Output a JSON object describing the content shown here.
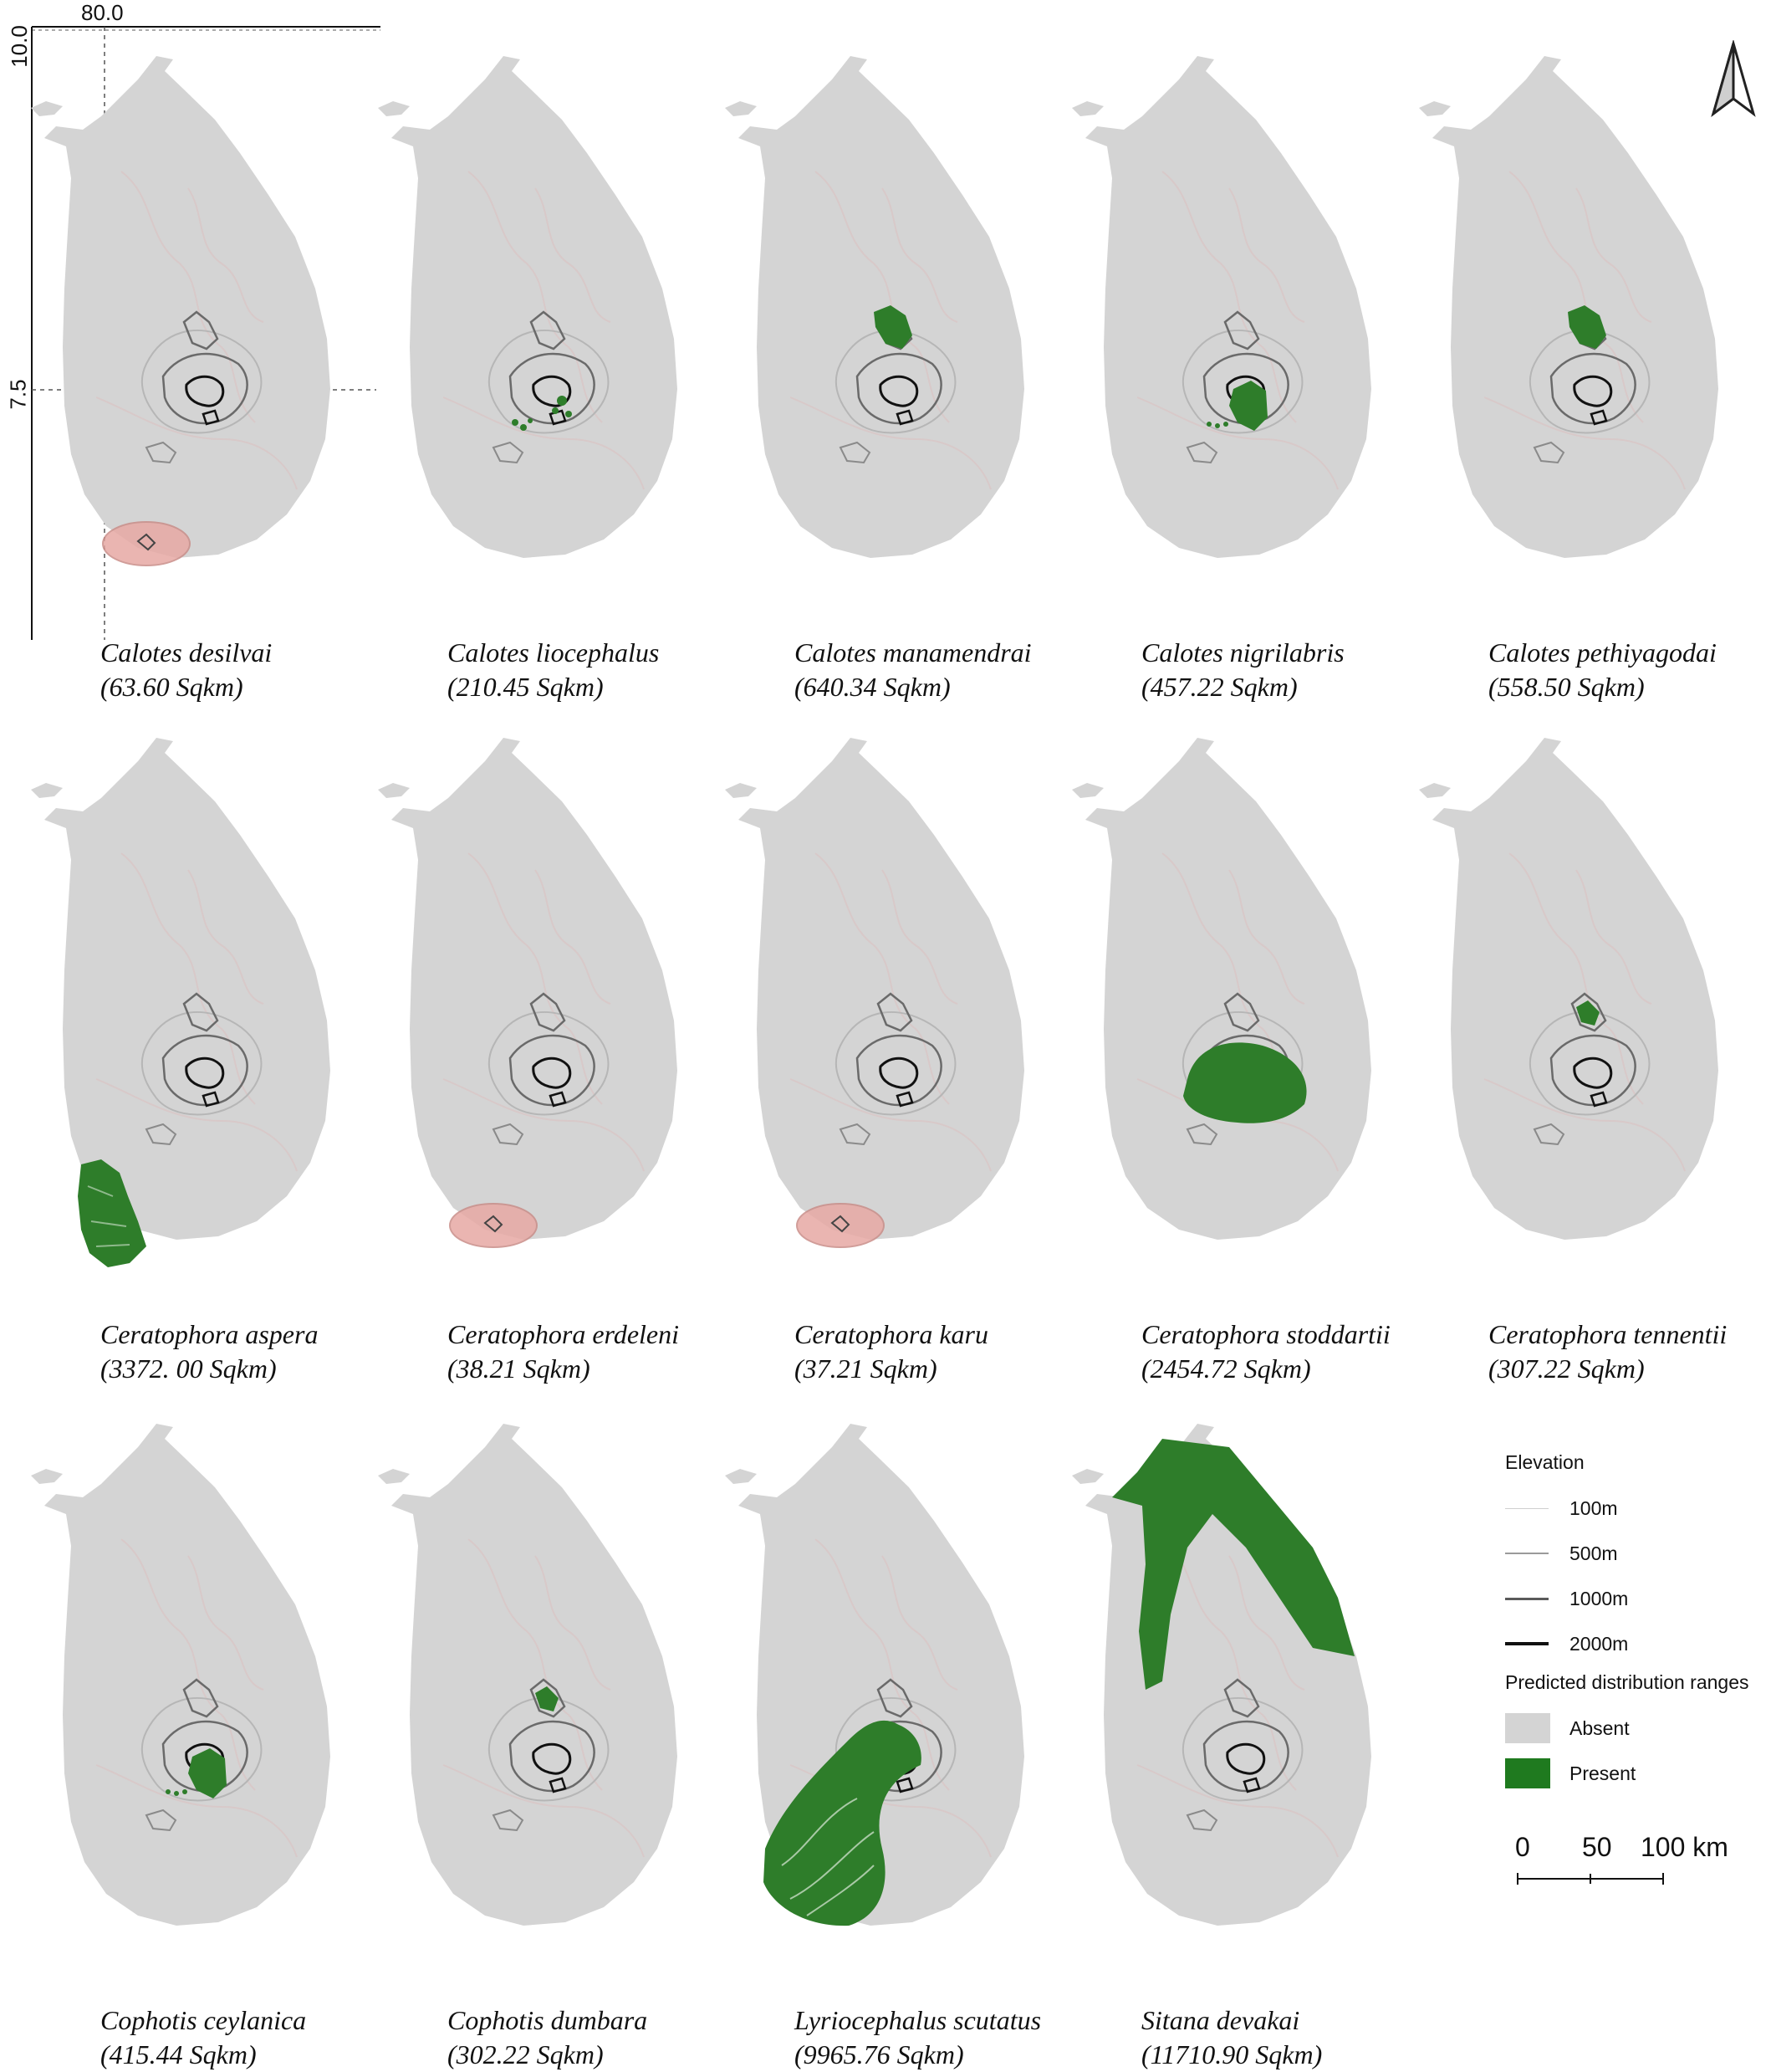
{
  "axes": {
    "lon_label": "80.0",
    "lat_labels": [
      "10.0",
      "7.5"
    ]
  },
  "panels": [
    {
      "species": "Calotes  desilvai",
      "area": "(63.60 Sqkm)",
      "range": "blob-sw-small"
    },
    {
      "species": "Calotes  liocephalus",
      "area": "(210.45 Sqkm)",
      "range": "dots-central"
    },
    {
      "species": "Calotes  manamendrai",
      "area": "(640.34 Sqkm)",
      "range": "knuckles"
    },
    {
      "species": "Calotes  nigrilabris",
      "area": "(457.22 Sqkm)",
      "range": "central-peak"
    },
    {
      "species": "Calotes  pethiyagodai",
      "area": "(558.50 Sqkm)",
      "range": "knuckles"
    },
    {
      "species": "Ceratophora  aspera",
      "area": "(3372. 00 Sqkm)",
      "range": "sw-lowland"
    },
    {
      "species": "Ceratophora  erdeleni",
      "area": "(38.21 Sqkm)",
      "range": "blob-sw-small"
    },
    {
      "species": "Ceratophora  karu",
      "area": "(37.21 Sqkm)",
      "range": "blob-sw-small"
    },
    {
      "species": "Ceratophora  stoddartii",
      "area": "(2454.72 Sqkm)",
      "range": "central-highland"
    },
    {
      "species": "Ceratophora  tennentii",
      "area": "(307.22 Sqkm)",
      "range": "knuckles-small"
    },
    {
      "species": "Cophotis  ceylanica",
      "area": "(415.44 Sqkm)",
      "range": "central-peak"
    },
    {
      "species": "Cophotis  dumbara",
      "area": "(302.22 Sqkm)",
      "range": "knuckles-small"
    },
    {
      "species": "Lyriocephalus  scutatus",
      "area": "(9965.76 Sqkm)",
      "range": "wet-zone"
    },
    {
      "species": "Sitana  devakai",
      "area": "(11710.90 Sqkm)",
      "range": "north-east"
    }
  ],
  "legend": {
    "elevation_title": "Elevation",
    "elevation_items": [
      {
        "label": "100m",
        "color": "#cfcfcf"
      },
      {
        "label": "500m",
        "color": "#9a9a9a"
      },
      {
        "label": "1000m",
        "color": "#5a5a5a"
      },
      {
        "label": "2000m",
        "color": "#111111"
      }
    ],
    "distribution_title": "Predicted distribution ranges",
    "distribution_items": [
      {
        "label": "Absent",
        "color": "#d4d4d4"
      },
      {
        "label": "Present",
        "color": "#1f7a1f"
      }
    ]
  },
  "scale": {
    "labels": [
      "0",
      "50",
      "100 km"
    ]
  },
  "colors": {
    "land": "#d4d4d4",
    "present": "#2e7d2a",
    "highlight": "#e7a9a4"
  },
  "north_arrow": "north-arrow-icon"
}
